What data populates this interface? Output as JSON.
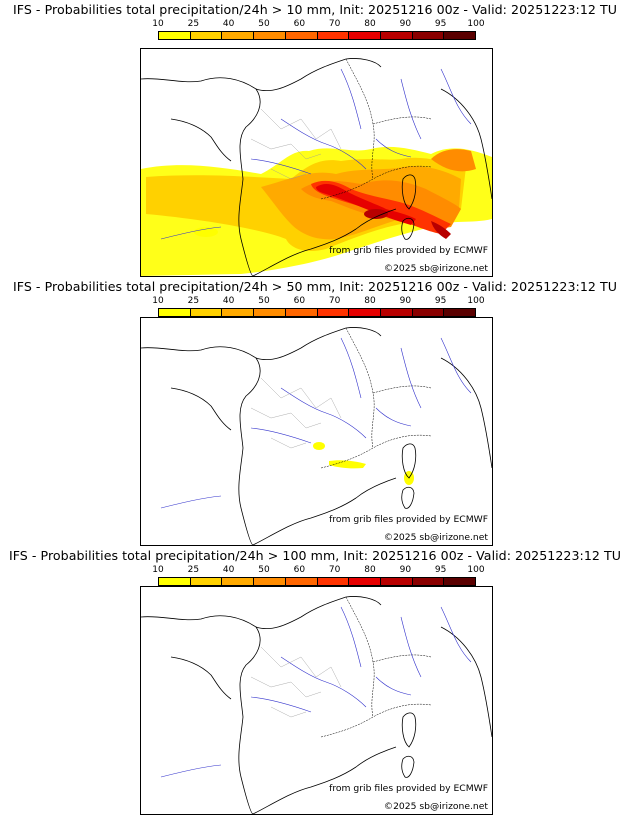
{
  "colorbar": {
    "labels": [
      "10",
      "25",
      "40",
      "50",
      "60",
      "70",
      "80",
      "90",
      "95",
      "100"
    ],
    "colors": [
      "#ffff00",
      "#ffd100",
      "#ffaa00",
      "#ff8c00",
      "#ff6600",
      "#ff3300",
      "#e60000",
      "#b80000",
      "#8a0000",
      "#5a0000"
    ]
  },
  "panels": [
    {
      "title": "IFS - Probabilities total precipitation/24h > 10 mm, Init: 20251216 00z - Valid: 20251223:12 TU",
      "credit_grib": "from grib files provided by ECMWF",
      "credit_copy": "©2025 sb@irizone.net"
    },
    {
      "title": "IFS - Probabilities total precipitation/24h > 50 mm, Init: 20251216 00z - Valid: 20251223:12 TU",
      "credit_grib": "from grib files provided by ECMWF",
      "credit_copy": "©2025 sb@irizone.net"
    },
    {
      "title": "IFS - Probabilities total precipitation/24h > 100 mm, Init: 20251216 00z - Valid: 20251223:12 TU",
      "credit_grib": "from grib files provided by ECMWF",
      "credit_copy": "©2025 sb@irizone.net"
    }
  ]
}
